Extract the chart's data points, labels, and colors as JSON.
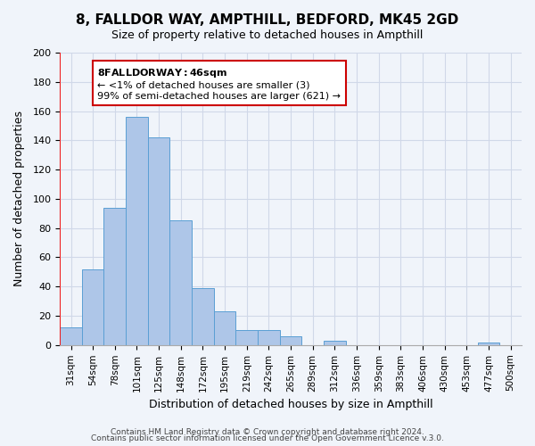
{
  "title": "8, FALLDOR WAY, AMPTHILL, BEDFORD, MK45 2GD",
  "subtitle": "Size of property relative to detached houses in Ampthill",
  "xlabel": "Distribution of detached houses by size in Ampthill",
  "ylabel": "Number of detached properties",
  "bar_labels": [
    "31sqm",
    "54sqm",
    "78sqm",
    "101sqm",
    "125sqm",
    "148sqm",
    "172sqm",
    "195sqm",
    "219sqm",
    "242sqm",
    "265sqm",
    "289sqm",
    "312sqm",
    "336sqm",
    "359sqm",
    "383sqm",
    "406sqm",
    "430sqm",
    "453sqm",
    "477sqm",
    "500sqm"
  ],
  "bar_values": [
    12,
    52,
    94,
    156,
    142,
    85,
    39,
    23,
    10,
    10,
    6,
    0,
    3,
    0,
    0,
    0,
    0,
    0,
    0,
    2,
    0
  ],
  "bar_color": "#aec6e8",
  "bar_edge_color": "#5a9fd4",
  "highlight_bar_index": 0,
  "highlight_color": "#aec6e8",
  "ylim": [
    0,
    200
  ],
  "yticks": [
    0,
    20,
    40,
    60,
    80,
    100,
    120,
    140,
    160,
    180,
    200
  ],
  "annotation_title": "8 FALLDOR WAY: 46sqm",
  "annotation_line1": "← <1% of detached houses are smaller (3)",
  "annotation_line2": "99% of semi-detached houses are larger (621) →",
  "annotation_box_color": "#ffffff",
  "annotation_box_edge": "#cc0000",
  "vline_x": 0,
  "footer1": "Contains HM Land Registry data © Crown copyright and database right 2024.",
  "footer2": "Contains public sector information licensed under the Open Government Licence v.3.0.",
  "grid_color": "#d0d8e8",
  "background_color": "#f0f4fa"
}
